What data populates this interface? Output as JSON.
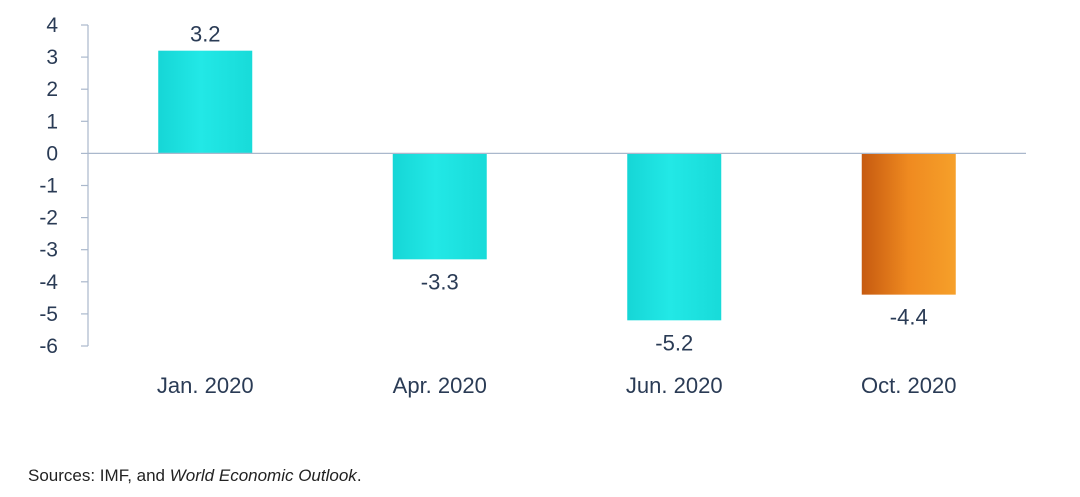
{
  "chart_data": {
    "type": "bar",
    "categories": [
      "Jan. 2020",
      "Apr. 2020",
      "Jun. 2020",
      "Oct. 2020"
    ],
    "values": [
      3.2,
      -3.3,
      -5.2,
      -4.4
    ],
    "value_labels": [
      "3.2",
      "-3.3",
      "-5.2",
      "-4.4"
    ],
    "ylim": [
      -6,
      4
    ],
    "yticks": [
      4,
      3,
      2,
      1,
      0,
      -1,
      -2,
      -3,
      -4,
      -5,
      -6
    ],
    "ytick_labels": [
      "4",
      "3",
      "2",
      "1",
      "0",
      "-1",
      "-2",
      "-3",
      "-4",
      "-5",
      "-6"
    ],
    "bar_colors": [
      "#1de3e0",
      "#1de3e0",
      "#1de3e0",
      "#e57f1c"
    ],
    "grid": false,
    "title": "",
    "xlabel": "",
    "ylabel": ""
  },
  "source": {
    "prefix": "Sources: IMF, and ",
    "italic": "World Economic Outlook",
    "suffix": "."
  },
  "colors": {
    "axis": "#aab8cc",
    "text": "#2a3b55",
    "bar_teal": "#1de3e0",
    "bar_orange": "#e57f1c"
  }
}
